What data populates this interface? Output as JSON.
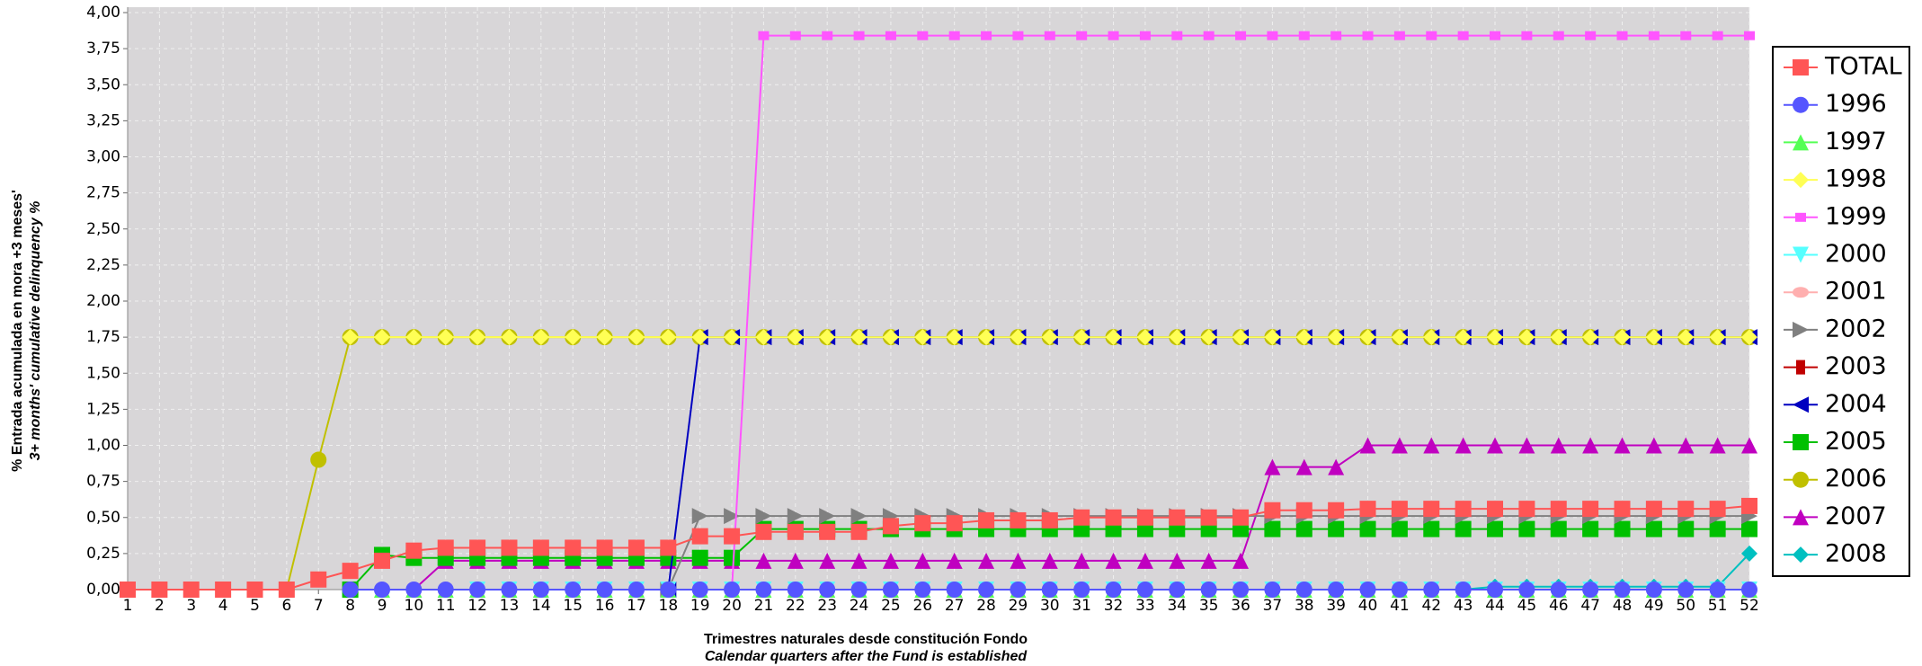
{
  "chart_data": {
    "type": "line",
    "xlabel": [
      "Trimestres naturales desde constitución Fondo",
      "Calendar quarters after the Fund is established"
    ],
    "ylabel": [
      "% Entrada acumulada en mora +3 meses'",
      "3+ months' cumulative delinquency %"
    ],
    "x": [
      1,
      2,
      3,
      4,
      5,
      6,
      7,
      8,
      9,
      10,
      11,
      12,
      13,
      14,
      15,
      16,
      17,
      18,
      19,
      20,
      21,
      22,
      23,
      24,
      25,
      26,
      27,
      28,
      29,
      30,
      31,
      32,
      33,
      34,
      35,
      36,
      37,
      38,
      39,
      40,
      41,
      42,
      43,
      44,
      45,
      46,
      47,
      48,
      49,
      50,
      51,
      52
    ],
    "xlim": [
      1,
      52
    ],
    "ylim": [
      0,
      4
    ],
    "yticks": [
      {
        "value": 0,
        "label": "0,00"
      },
      {
        "value": 0.25,
        "label": "0,25"
      },
      {
        "value": 0.5,
        "label": "0,50"
      },
      {
        "value": 0.75,
        "label": "0,75"
      },
      {
        "value": 1,
        "label": "1,00"
      },
      {
        "value": 1.25,
        "label": "1,25"
      },
      {
        "value": 1.5,
        "label": "1,50"
      },
      {
        "value": 1.75,
        "label": "1,75"
      },
      {
        "value": 2,
        "label": "2,00"
      },
      {
        "value": 2.25,
        "label": "2,25"
      },
      {
        "value": 2.5,
        "label": "2,50"
      },
      {
        "value": 2.75,
        "label": "2,75"
      },
      {
        "value": 3,
        "label": "3,00"
      },
      {
        "value": 3.25,
        "label": "3,25"
      },
      {
        "value": 3.5,
        "label": "3,50"
      },
      {
        "value": 3.75,
        "label": "3,75"
      },
      {
        "value": 4,
        "label": "4,00"
      }
    ],
    "grid": true,
    "legend": "right",
    "series": [
      {
        "name": "TOTAL",
        "color": "#ff5555",
        "marker": "square",
        "values": [
          0,
          0,
          0,
          0,
          0,
          0,
          0.07,
          0.13,
          0.2,
          0.27,
          0.29,
          0.29,
          0.29,
          0.29,
          0.29,
          0.29,
          0.29,
          0.29,
          0.37,
          0.37,
          0.4,
          0.4,
          0.4,
          0.4,
          0.44,
          0.46,
          0.46,
          0.48,
          0.48,
          0.48,
          0.5,
          0.5,
          0.5,
          0.5,
          0.5,
          0.5,
          0.55,
          0.55,
          0.55,
          0.56,
          0.56,
          0.56,
          0.56,
          0.56,
          0.56,
          0.56,
          0.56,
          0.56,
          0.56,
          0.56,
          0.56,
          0.58
        ]
      },
      {
        "name": "1996",
        "color": "#5555ff",
        "marker": "circle",
        "values": [
          null,
          null,
          null,
          null,
          null,
          null,
          null,
          0,
          0,
          0,
          0,
          0,
          0,
          0,
          0,
          0,
          0,
          0,
          0,
          0,
          0,
          0,
          0,
          0,
          0,
          0,
          0,
          0,
          0,
          0,
          0,
          0,
          0,
          0,
          0,
          0,
          0,
          0,
          0,
          0,
          0,
          0,
          0,
          0,
          0,
          0,
          0,
          0,
          0,
          0,
          0,
          0
        ]
      },
      {
        "name": "1997",
        "color": "#55ff55",
        "marker": "triangle-up",
        "values": [
          null,
          null,
          null,
          null,
          null,
          null,
          null,
          null,
          0,
          0,
          0,
          0,
          0,
          0,
          0,
          0,
          0,
          0,
          0,
          0,
          0,
          0,
          0,
          0,
          0,
          0,
          0,
          0,
          0,
          0,
          0,
          0,
          0,
          0,
          0,
          0,
          0,
          0,
          0,
          0,
          0,
          0,
          0,
          0,
          0,
          0,
          0,
          0,
          0,
          0,
          0,
          0
        ]
      },
      {
        "name": "1998",
        "color": "#ffff55",
        "marker": "diamond",
        "values": [
          null,
          null,
          null,
          null,
          null,
          null,
          null,
          1.75,
          1.75,
          1.75,
          1.75,
          1.75,
          1.75,
          1.75,
          1.75,
          1.75,
          1.75,
          1.75,
          1.75,
          1.75,
          1.75,
          1.75,
          1.75,
          1.75,
          1.75,
          1.75,
          1.75,
          1.75,
          1.75,
          1.75,
          1.75,
          1.75,
          1.75,
          1.75,
          1.75,
          1.75,
          1.75,
          1.75,
          1.75,
          1.75,
          1.75,
          1.75,
          1.75,
          1.75,
          1.75,
          1.75,
          1.75,
          1.75,
          1.75,
          1.75,
          1.75,
          1.75
        ]
      },
      {
        "name": "1999",
        "color": "#ff55ff",
        "marker": "small-square",
        "values": [
          null,
          null,
          null,
          null,
          null,
          null,
          null,
          null,
          null,
          null,
          null,
          null,
          null,
          null,
          null,
          null,
          null,
          null,
          null,
          0,
          3.84,
          3.84,
          3.84,
          3.84,
          3.84,
          3.84,
          3.84,
          3.84,
          3.84,
          3.84,
          3.84,
          3.84,
          3.84,
          3.84,
          3.84,
          3.84,
          3.84,
          3.84,
          3.84,
          3.84,
          3.84,
          3.84,
          3.84,
          3.84,
          3.84,
          3.84,
          3.84,
          3.84,
          3.84,
          3.84,
          3.84,
          3.84
        ]
      },
      {
        "name": "2000",
        "color": "#55ffff",
        "marker": "triangle-down",
        "values": [
          null,
          null,
          null,
          null,
          null,
          null,
          null,
          null,
          null,
          null,
          null,
          0,
          0,
          0,
          0,
          0,
          0,
          0,
          0,
          0,
          0,
          0,
          0,
          0,
          0,
          0,
          0,
          0,
          0,
          0,
          0,
          0,
          0,
          0,
          0,
          0,
          0,
          0,
          0,
          0,
          0,
          0,
          0,
          0,
          0,
          0,
          0,
          0,
          0,
          0,
          0,
          0
        ]
      },
      {
        "name": "2001",
        "color": "#ffafaf",
        "marker": "ellipse",
        "values": [
          null,
          null,
          null,
          null,
          null,
          null,
          null,
          null,
          null,
          null,
          null,
          null,
          null,
          null,
          null,
          0,
          0,
          0,
          0,
          0,
          0,
          0,
          0,
          0,
          0,
          0,
          0,
          0,
          0,
          0,
          0,
          0,
          0,
          0,
          0,
          0,
          0,
          0,
          0,
          0,
          0,
          0,
          0,
          0,
          0,
          0,
          0,
          0,
          0,
          0,
          0,
          0
        ]
      },
      {
        "name": "2002",
        "color": "#808080",
        "marker": "triangle-right",
        "values": [
          null,
          null,
          null,
          null,
          null,
          null,
          null,
          null,
          null,
          null,
          null,
          null,
          null,
          null,
          null,
          null,
          null,
          0,
          0.51,
          0.51,
          0.51,
          0.51,
          0.51,
          0.51,
          0.51,
          0.51,
          0.51,
          0.51,
          0.51,
          0.51,
          0.51,
          0.51,
          0.51,
          0.51,
          0.51,
          0.51,
          0.51,
          0.51,
          0.51,
          0.51,
          0.51,
          0.51,
          0.51,
          0.51,
          0.51,
          0.51,
          0.51,
          0.51,
          0.51,
          0.51,
          0.51,
          0.51
        ]
      },
      {
        "name": "2003",
        "color": "#c00000",
        "marker": "small-rect",
        "values": [
          null,
          null,
          null,
          null,
          null,
          null,
          null,
          null,
          null,
          null,
          null,
          null,
          null,
          null,
          null,
          null,
          null,
          null,
          null,
          null,
          null,
          null,
          null,
          0,
          0,
          0,
          0,
          0,
          0,
          0,
          0,
          0,
          0,
          0,
          0,
          0,
          0,
          0,
          0,
          0,
          0,
          0,
          0,
          0,
          0,
          0,
          0,
          0,
          0,
          0,
          0,
          0
        ]
      },
      {
        "name": "2004",
        "color": "#0000c0",
        "marker": "triangle-left",
        "values": [
          null,
          null,
          null,
          null,
          null,
          null,
          null,
          null,
          null,
          null,
          null,
          null,
          null,
          null,
          null,
          null,
          null,
          0,
          1.75,
          1.75,
          1.75,
          1.75,
          1.75,
          1.75,
          1.75,
          1.75,
          1.75,
          1.75,
          1.75,
          1.75,
          1.75,
          1.75,
          1.75,
          1.75,
          1.75,
          1.75,
          1.75,
          1.75,
          1.75,
          1.75,
          1.75,
          1.75,
          1.75,
          1.75,
          1.75,
          1.75,
          1.75,
          1.75,
          1.75,
          1.75,
          1.75,
          1.75
        ]
      },
      {
        "name": "2005",
        "color": "#00c000",
        "marker": "square",
        "values": [
          null,
          null,
          null,
          null,
          null,
          null,
          null,
          0,
          0.24,
          0.22,
          0.22,
          0.22,
          0.22,
          0.22,
          0.22,
          0.22,
          0.22,
          0.22,
          0.22,
          0.22,
          0.42,
          0.42,
          0.42,
          0.42,
          0.42,
          0.42,
          0.42,
          0.42,
          0.42,
          0.42,
          0.42,
          0.42,
          0.42,
          0.42,
          0.42,
          0.42,
          0.42,
          0.42,
          0.42,
          0.42,
          0.42,
          0.42,
          0.42,
          0.42,
          0.42,
          0.42,
          0.42,
          0.42,
          0.42,
          0.42,
          0.42,
          0.42
        ]
      },
      {
        "name": "2006",
        "color": "#c0c000",
        "marker": "circle",
        "values": [
          null,
          null,
          null,
          null,
          null,
          0,
          0.9,
          1.75,
          1.75,
          1.75,
          1.75,
          1.75,
          1.75,
          1.75,
          1.75,
          1.75,
          1.75,
          1.75,
          1.75,
          1.75,
          1.75,
          1.75,
          1.75,
          1.75,
          1.75,
          1.75,
          1.75,
          1.75,
          1.75,
          1.75,
          1.75,
          1.75,
          1.75,
          1.75,
          1.75,
          1.75,
          1.75,
          1.75,
          1.75,
          1.75,
          1.75,
          1.75,
          1.75,
          1.75,
          1.75,
          1.75,
          1.75,
          1.75,
          1.75,
          1.75,
          1.75,
          1.75
        ]
      },
      {
        "name": "2007",
        "color": "#c000c0",
        "marker": "triangle-up",
        "values": [
          null,
          null,
          null,
          null,
          null,
          null,
          null,
          null,
          null,
          0,
          0.2,
          0.2,
          0.2,
          0.2,
          0.2,
          0.2,
          0.2,
          0.2,
          0.2,
          0.2,
          0.2,
          0.2,
          0.2,
          0.2,
          0.2,
          0.2,
          0.2,
          0.2,
          0.2,
          0.2,
          0.2,
          0.2,
          0.2,
          0.2,
          0.2,
          0.2,
          0.85,
          0.85,
          0.85,
          1,
          1,
          1,
          1,
          1,
          1,
          1,
          1,
          1,
          1,
          1,
          1,
          1
        ]
      },
      {
        "name": "2008",
        "color": "#00c0c0",
        "marker": "diamond",
        "values": [
          null,
          null,
          null,
          null,
          null,
          null,
          null,
          null,
          null,
          null,
          null,
          null,
          null,
          null,
          null,
          null,
          null,
          null,
          null,
          null,
          null,
          null,
          null,
          null,
          null,
          null,
          null,
          null,
          null,
          null,
          null,
          null,
          null,
          null,
          null,
          null,
          null,
          null,
          null,
          null,
          null,
          null,
          0,
          0.02,
          0.02,
          0.02,
          0.02,
          0.02,
          0.02,
          0.02,
          0.02,
          0.25
        ]
      }
    ]
  }
}
